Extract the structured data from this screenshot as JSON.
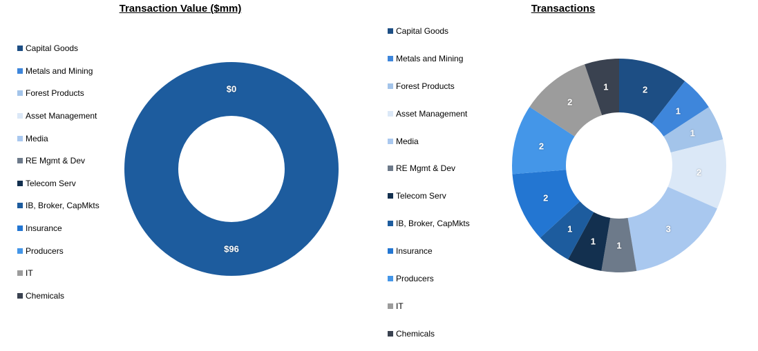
{
  "background": "#FFFFFF",
  "chart_data": [
    {
      "type": "donut",
      "title": "Transaction Value ($mm)",
      "legend_position": "left",
      "categories": [
        "Capital Goods",
        "Metals and Mining",
        "Forest Products",
        "Asset Management",
        "Media",
        "RE Mgmt & Dev",
        "Telecom Serv",
        "IB, Broker, CapMkts",
        "Insurance",
        "Producers",
        "IT",
        "Chemicals"
      ],
      "values": [
        0,
        0,
        0,
        0,
        0,
        0,
        0,
        96,
        0,
        0,
        0,
        0
      ],
      "data_labels": [
        "$0",
        "",
        "",
        "",
        "",
        "",
        "",
        "$96",
        "",
        "",
        "",
        ""
      ],
      "colors": [
        "#1D4E84",
        "#3E86DB",
        "#A3C4EA",
        "#DBE8F7",
        "#A9C8EF",
        "#6D7A8A",
        "#13304F",
        "#1D5C9E",
        "#2376D2",
        "#4496E8",
        "#9C9C9C",
        "#3A4250"
      ],
      "total": 96,
      "label_color": "#FFFFFF"
    },
    {
      "type": "donut",
      "title": "Transactions",
      "legend_position": "left",
      "categories": [
        "Capital Goods",
        "Metals and Mining",
        "Forest Products",
        "Asset Management",
        "Media",
        "RE Mgmt & Dev",
        "Telecom Serv",
        "IB, Broker, CapMkts",
        "Insurance",
        "Producers",
        "IT",
        "Chemicals"
      ],
      "values": [
        2,
        1,
        1,
        2,
        3,
        1,
        1,
        1,
        2,
        2,
        2,
        1
      ],
      "data_labels": [
        "2",
        "1",
        "1",
        "2",
        "3",
        "1",
        "1",
        "1",
        "2",
        "2",
        "2",
        "1"
      ],
      "colors": [
        "#1D4E84",
        "#3E86DB",
        "#A3C4EA",
        "#DBE8F7",
        "#A9C8EF",
        "#6D7A8A",
        "#13304F",
        "#1D5C9E",
        "#2376D2",
        "#4496E8",
        "#9C9C9C",
        "#3A4250"
      ],
      "total": 19,
      "label_color": "#FFFFFF"
    }
  ]
}
